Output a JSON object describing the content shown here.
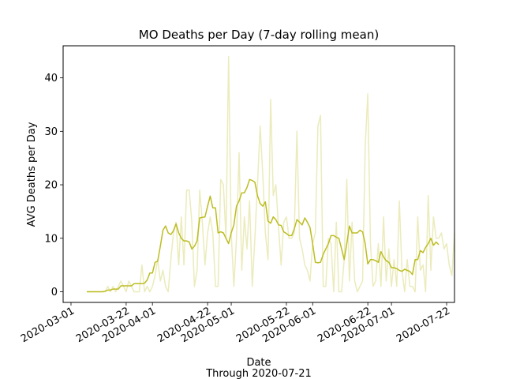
{
  "chart_data": {
    "type": "line",
    "title": "MO Deaths per Day (7-day rolling mean)",
    "xlabel": "Date",
    "xlabel_sub": "Through 2020-07-21",
    "ylabel": "AVG Deaths per Day",
    "xlim": [
      "2020-02-27",
      "2020-07-25"
    ],
    "ylim": [
      -2,
      46
    ],
    "x_ticks": [
      "2020-03-01",
      "2020-03-22",
      "2020-04-01",
      "2020-04-22",
      "2020-05-01",
      "2020-05-22",
      "2020-06-01",
      "2020-06-22",
      "2020-07-01",
      "2020-07-22"
    ],
    "y_ticks": [
      0,
      10,
      20,
      30,
      40
    ],
    "grid": false,
    "x_start": "2020-03-07",
    "series": [
      {
        "role": "daily",
        "color": "#bcbd22",
        "opacity": 0.3,
        "values": [
          0,
          0,
          0,
          0,
          0,
          0,
          0,
          0,
          1,
          0,
          1,
          0,
          1,
          2,
          1,
          0,
          2,
          1,
          0,
          0,
          0,
          5,
          0,
          1,
          0,
          1,
          3,
          6,
          2,
          4,
          1,
          0,
          6,
          11,
          13,
          5,
          14,
          5,
          19,
          19,
          13,
          1,
          4,
          19,
          13,
          5,
          11,
          14,
          11,
          1,
          1,
          21,
          20,
          10,
          44,
          11,
          1,
          10,
          26,
          4,
          14,
          8,
          17,
          1,
          10,
          20,
          31,
          22,
          11,
          6,
          36,
          18,
          20,
          12,
          5,
          13,
          14,
          10,
          10,
          11,
          30,
          10,
          8,
          5,
          4,
          2,
          9,
          11,
          31,
          33,
          1,
          1,
          10,
          9,
          0,
          13,
          0,
          0,
          6,
          21,
          2,
          13,
          2,
          0,
          1,
          2,
          27,
          37,
          9,
          1,
          2,
          9,
          1,
          14,
          2,
          8,
          1,
          6,
          1,
          17,
          4,
          0,
          6,
          1,
          1,
          0,
          14,
          4,
          5,
          0,
          18,
          4,
          14,
          10,
          10,
          11,
          8,
          9,
          5,
          3,
          11
        ]
      },
      {
        "role": "rolling_mean",
        "color": "#bcbd22",
        "opacity": 1,
        "values": [
          0,
          0,
          0,
          0,
          0,
          0,
          0,
          0.1,
          0.3,
          0.3,
          0.5,
          0.5,
          0.5,
          1.1,
          1.1,
          1.1,
          1.1,
          1.1,
          1.5,
          1.5,
          1.5,
          1.5,
          1.6,
          2.2,
          3.5,
          3.5,
          5.5,
          5.7,
          8.5,
          11.5,
          12.3,
          11.0,
          10.7,
          11.4,
          12.7,
          11.0,
          10.0,
          9.5,
          9.5,
          9.3,
          8.0,
          8.5,
          9.5,
          13.8,
          13.9,
          14.0,
          16.0,
          17.9,
          15.7,
          15.7,
          11.0,
          11.2,
          11.0,
          10.0,
          9.0,
          11.0,
          12.5,
          16.0,
          17.0,
          18.5,
          18.5,
          19.5,
          21.0,
          20.8,
          20.5,
          18.0,
          16.5,
          16.0,
          16.8,
          13.2,
          12.8,
          14.0,
          13.5,
          12.5,
          12.4,
          11.2,
          10.9,
          10.5,
          10.5,
          11.7,
          13.5,
          13.0,
          12.5,
          13.8,
          13.0,
          12.0,
          9.0,
          5.5,
          5.4,
          5.5,
          7.0,
          8.0,
          9.0,
          10.5,
          10.5,
          10.2,
          10.0,
          8.0,
          6.0,
          9.0,
          12.3,
          11.0,
          11.0,
          11.0,
          11.5,
          11.2,
          9.0,
          5.2,
          6.0,
          6.0,
          5.8,
          5.5,
          7.5,
          6.5,
          5.8,
          5.5,
          4.5,
          4.5,
          4.3,
          4.0,
          3.8,
          4.2,
          4.0,
          3.8,
          3.2,
          6.0,
          6.0,
          7.7,
          7.3,
          8.3,
          9.0,
          10.0,
          8.7,
          9.3,
          8.8
        ]
      }
    ]
  }
}
